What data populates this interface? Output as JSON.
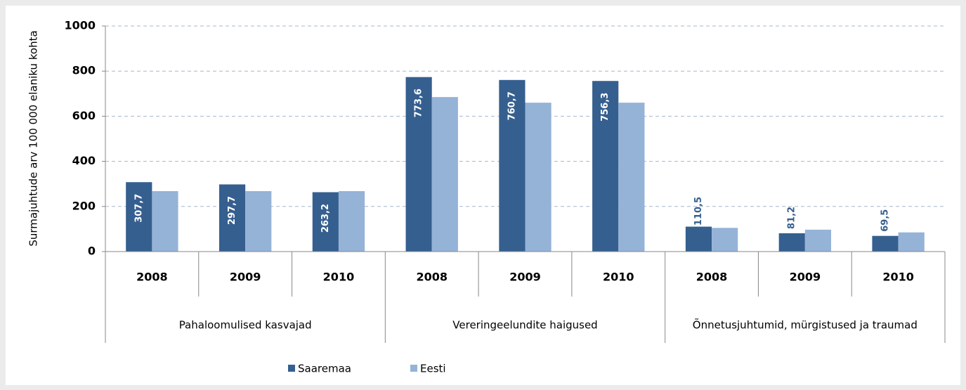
{
  "chart_data": {
    "type": "bar",
    "y_label": "Surmajuhtude arv 100 000 elaniku kohta",
    "categories": [
      "2008",
      "2009",
      "2010",
      "2008",
      "2009",
      "2010",
      "2008",
      "2009",
      "2010"
    ],
    "groups": [
      "Pahaloomulised kasvajad",
      "Vereringeelundite haigused",
      "Õnnetusjuhtumid, mürgistused ja traumad"
    ],
    "series": [
      {
        "name": "Saaremaa",
        "color": "#355f8f",
        "values": [
          307.7,
          297.7,
          263.2,
          773.6,
          760.7,
          756.3,
          110.5,
          81.2,
          69.5
        ],
        "value_labels": [
          "307,7",
          "297,7",
          "263,2",
          "773,6",
          "760,7",
          "756,3",
          "110,5",
          "81,2",
          "69,5"
        ]
      },
      {
        "name": "Eesti",
        "color": "#95b3d7",
        "values": [
          268,
          268,
          268,
          685,
          660,
          660,
          105,
          97,
          85
        ]
      }
    ],
    "ylim": [
      0,
      1000
    ],
    "yticks": [
      0,
      200,
      400,
      600,
      800,
      1000
    ],
    "grid": true
  }
}
